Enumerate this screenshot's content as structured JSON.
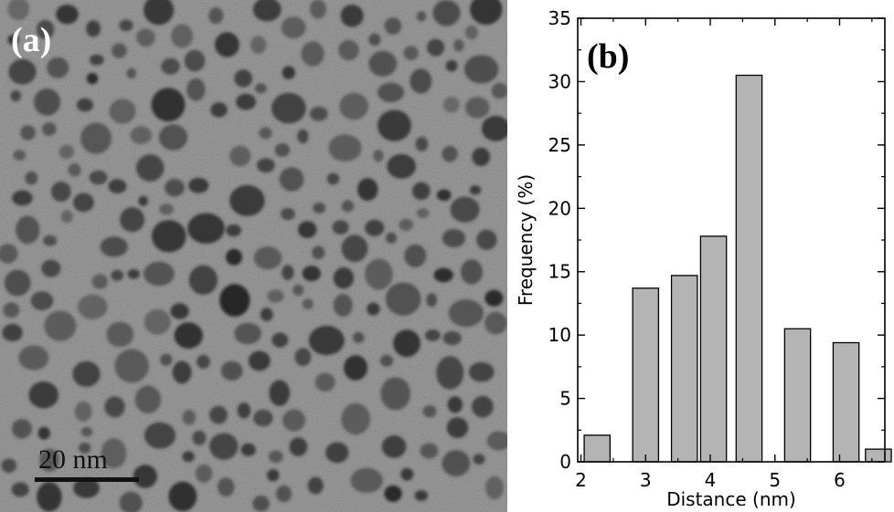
{
  "panel_a": {
    "label": "(a)",
    "scale_bar_label": "20 nm"
  },
  "panel_b": {
    "label": "(b)"
  },
  "chart_data": {
    "type": "bar",
    "xlabel": "Distance (nm)",
    "ylabel": "Frequency (%)",
    "xlim": [
      1.95,
      6.7
    ],
    "ylim": [
      0,
      35
    ],
    "xticks": [
      2,
      3,
      4,
      5,
      6
    ],
    "yticks": [
      0,
      5,
      10,
      15,
      20,
      25,
      30,
      35
    ],
    "bar_width": 0.4,
    "bins": [
      {
        "x": 2.25,
        "value": 2.1
      },
      {
        "x": 3.0,
        "value": 13.7
      },
      {
        "x": 3.6,
        "value": 14.7
      },
      {
        "x": 4.05,
        "value": 17.8
      },
      {
        "x": 4.6,
        "value": 30.5
      },
      {
        "x": 5.35,
        "value": 10.5
      },
      {
        "x": 6.1,
        "value": 9.4
      },
      {
        "x": 6.6,
        "value": 1.0
      }
    ],
    "bar_color": "#b4b4b4",
    "grid": false
  }
}
